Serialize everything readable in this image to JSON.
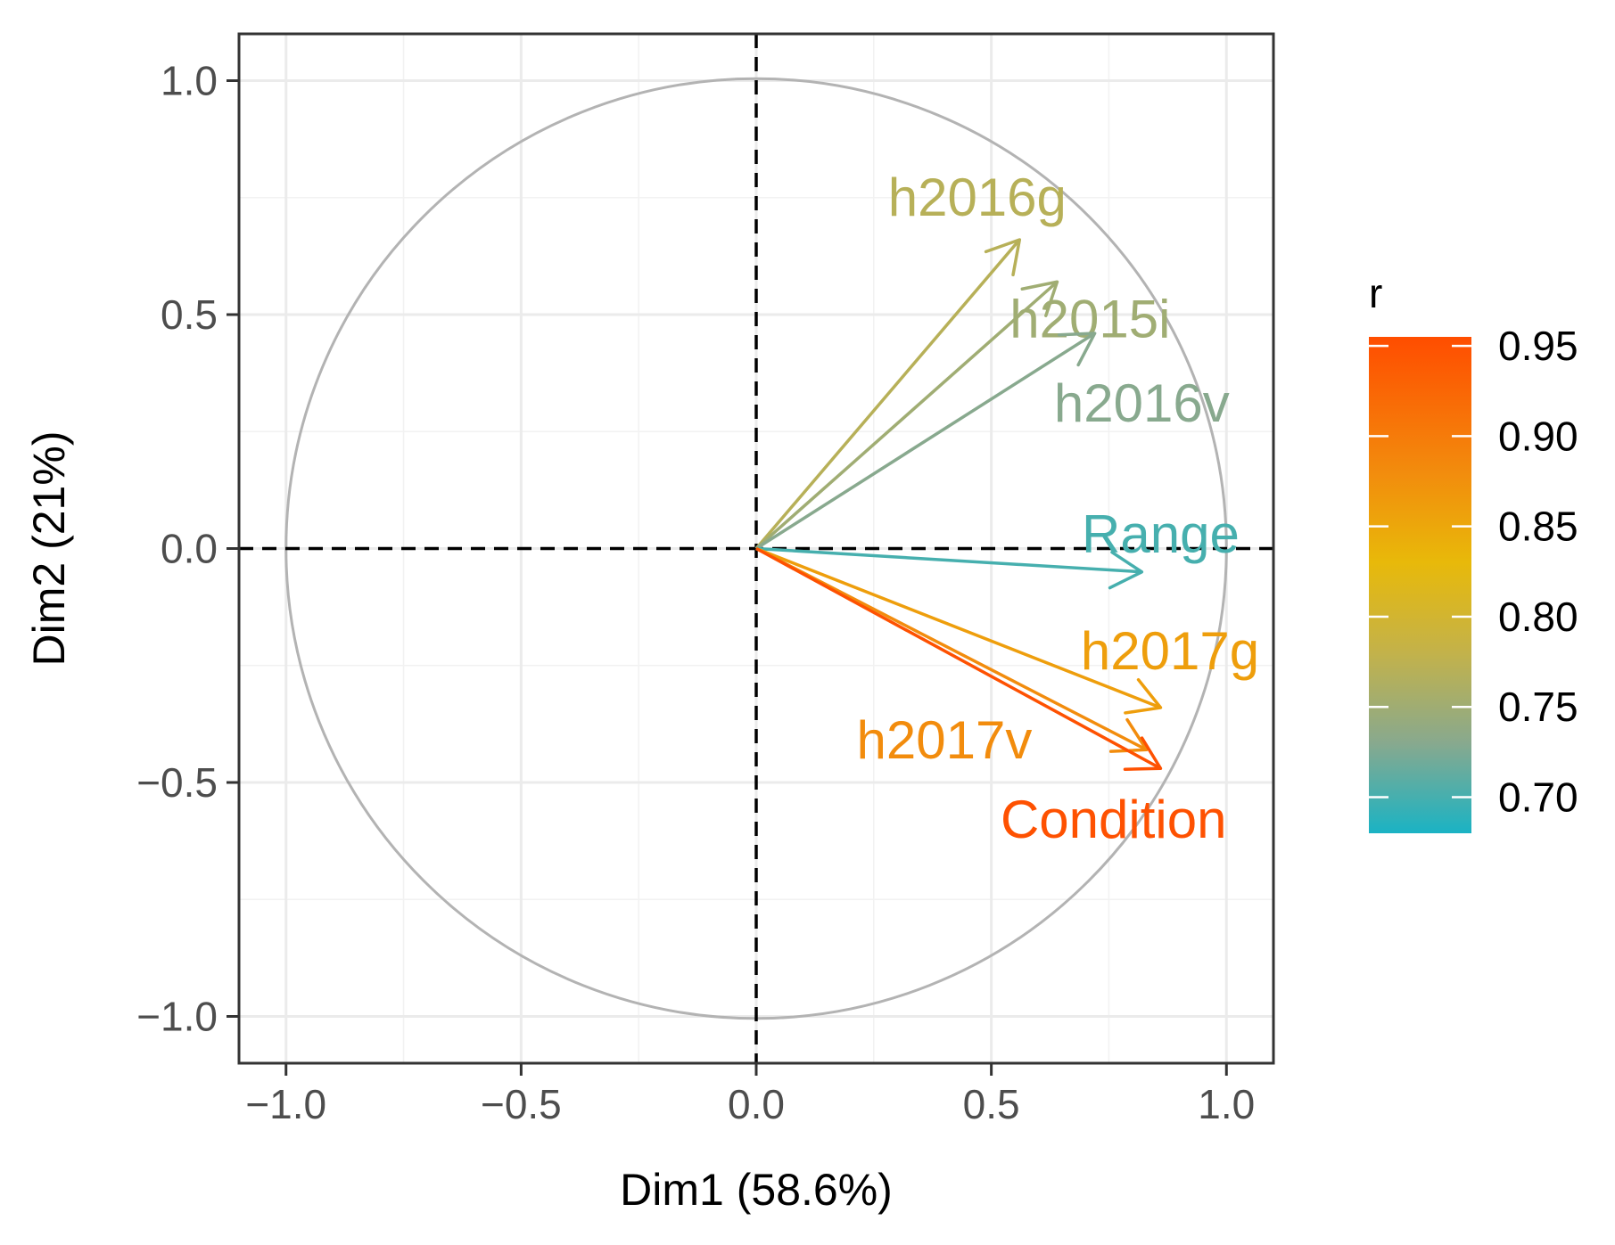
{
  "chart_data": {
    "type": "pca-correlation-circle",
    "xlabel": "Dim1 (58.6%)",
    "ylabel": "Dim2 (21%)",
    "xlim": [
      -1.1,
      1.1
    ],
    "ylim": [
      -1.1,
      1.1
    ],
    "x_ticks": [
      -1.0,
      -0.5,
      0.0,
      0.5,
      1.0
    ],
    "y_ticks": [
      -1.0,
      -0.5,
      0.0,
      0.5,
      1.0
    ],
    "x_tick_labels": [
      "−1.0",
      "−0.5",
      "0.0",
      "0.5",
      "1.0"
    ],
    "y_tick_labels": [
      "−1.0",
      "−0.5",
      "0.0",
      "0.5",
      "1.0"
    ],
    "grid": true,
    "unit_circle": true,
    "vectors": [
      {
        "name": "h2016g",
        "x": 0.56,
        "y": 0.66,
        "r": 0.77
      },
      {
        "name": "h2015i",
        "x": 0.64,
        "y": 0.57,
        "r": 0.75
      },
      {
        "name": "h2016v",
        "x": 0.72,
        "y": 0.46,
        "r": 0.73
      },
      {
        "name": "Range",
        "x": 0.82,
        "y": -0.05,
        "r": 0.7
      },
      {
        "name": "h2017g",
        "x": 0.86,
        "y": -0.34,
        "r": 0.86
      },
      {
        "name": "h2017v",
        "x": 0.83,
        "y": -0.43,
        "r": 0.88
      },
      {
        "name": "Condition",
        "x": 0.86,
        "y": -0.47,
        "r": 0.95
      }
    ],
    "legend": {
      "title": "r",
      "position": "right",
      "range": [
        0.68,
        0.955
      ],
      "ticks": [
        0.95,
        0.9,
        0.85,
        0.8,
        0.75,
        0.7
      ],
      "tick_labels": [
        "0.95",
        "0.90",
        "0.85",
        "0.80",
        "0.75",
        "0.70"
      ],
      "gradient_stops": [
        {
          "r": 0.68,
          "color": "#1ab3c4"
        },
        {
          "r": 0.73,
          "color": "#88a98e"
        },
        {
          "r": 0.78,
          "color": "#c3b24a"
        },
        {
          "r": 0.83,
          "color": "#e8b90a"
        },
        {
          "r": 0.88,
          "color": "#f28c0d"
        },
        {
          "r": 0.955,
          "color": "#ff4d00"
        }
      ]
    }
  }
}
